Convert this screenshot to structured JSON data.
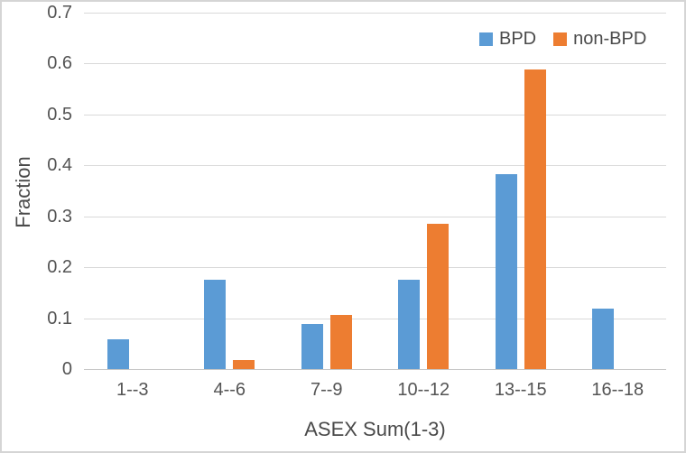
{
  "chart_data": {
    "type": "bar",
    "title": "",
    "xlabel": "ASEX Sum(1-3)",
    "ylabel": "Fraction",
    "categories": [
      "1--3",
      "4--6",
      "7--9",
      "10--12",
      "13--15",
      "16--18"
    ],
    "series": [
      {
        "name": "BPD",
        "color": "#5B9BD5",
        "values": [
          0.059,
          0.176,
          0.088,
          0.176,
          0.382,
          0.118
        ]
      },
      {
        "name": "non-BPD",
        "color": "#ED7D31",
        "values": [
          0,
          0.018,
          0.107,
          0.286,
          0.589,
          0
        ]
      }
    ],
    "ylim": [
      0,
      0.7
    ],
    "yticks": [
      {
        "value": 0.0,
        "label": "0"
      },
      {
        "value": 0.1,
        "label": "0.1"
      },
      {
        "value": 0.2,
        "label": "0.2"
      },
      {
        "value": 0.3,
        "label": "0.3"
      },
      {
        "value": 0.4,
        "label": "0.4"
      },
      {
        "value": 0.5,
        "label": "0.5"
      },
      {
        "value": 0.6,
        "label": "0.6"
      },
      {
        "value": 0.7,
        "label": "0.7"
      }
    ],
    "grid": true,
    "legend_position": "top-right",
    "colors": {
      "gridline": "#d9d9d9",
      "axis_line": "#c6c6c6",
      "tick_text": "#545454",
      "title_text": "#4a4a4a",
      "background": "#ffffff",
      "border": "#d5d5d5"
    }
  }
}
